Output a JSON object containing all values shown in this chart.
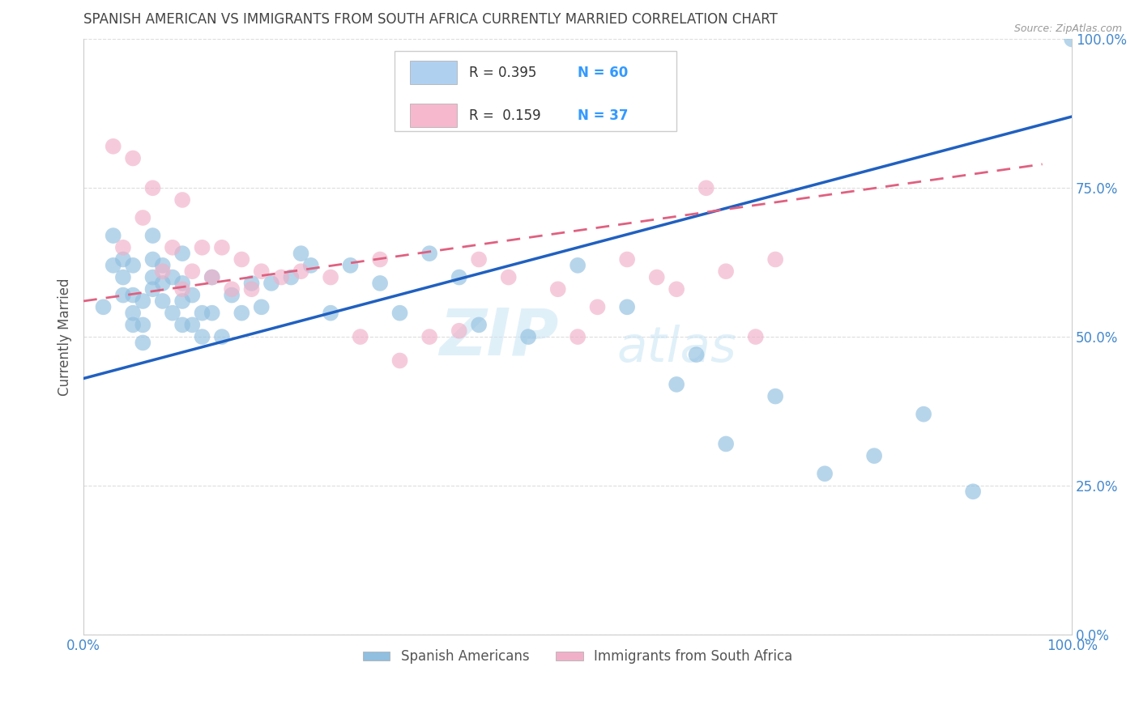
{
  "title": "SPANISH AMERICAN VS IMMIGRANTS FROM SOUTH AFRICA CURRENTLY MARRIED CORRELATION CHART",
  "source": "Source: ZipAtlas.com",
  "ylabel": "Currently Married",
  "xlim": [
    0,
    1
  ],
  "ylim": [
    0,
    1
  ],
  "xtick_positions": [
    0.0,
    1.0
  ],
  "xtick_labels": [
    "0.0%",
    "100.0%"
  ],
  "ytick_positions": [
    0.0,
    0.25,
    0.5,
    0.75,
    1.0
  ],
  "ytick_labels": [
    "0.0%",
    "25.0%",
    "50.0%",
    "75.0%",
    "100.0%"
  ],
  "watermark_text": "ZIPatlas",
  "blue_color": "#90bfe0",
  "pink_color": "#f0b0c8",
  "blue_line_color": "#2060c0",
  "pink_line_color": "#e06080",
  "title_color": "#444444",
  "axis_tick_color": "#4488cc",
  "ylabel_color": "#555555",
  "r_color": "#333333",
  "n_color": "#3399ff",
  "legend_r1": "R = 0.395",
  "legend_n1": "N = 60",
  "legend_r2": "R =  0.159",
  "legend_n2": "N = 37",
  "legend_color1": "#b0d0f0",
  "legend_color2": "#f5b8cc",
  "blue_scatter_x": [
    0.02,
    0.03,
    0.03,
    0.04,
    0.04,
    0.04,
    0.05,
    0.05,
    0.05,
    0.05,
    0.06,
    0.06,
    0.06,
    0.07,
    0.07,
    0.07,
    0.07,
    0.08,
    0.08,
    0.08,
    0.09,
    0.09,
    0.1,
    0.1,
    0.1,
    0.1,
    0.11,
    0.11,
    0.12,
    0.12,
    0.13,
    0.13,
    0.14,
    0.15,
    0.16,
    0.17,
    0.18,
    0.19,
    0.21,
    0.22,
    0.23,
    0.25,
    0.27,
    0.3,
    0.32,
    0.35,
    0.38,
    0.4,
    0.45,
    0.5,
    0.55,
    0.6,
    0.62,
    0.65,
    0.7,
    0.75,
    0.8,
    0.85,
    0.9,
    1.0
  ],
  "blue_scatter_y": [
    0.55,
    0.62,
    0.67,
    0.57,
    0.6,
    0.63,
    0.52,
    0.54,
    0.57,
    0.62,
    0.49,
    0.52,
    0.56,
    0.58,
    0.6,
    0.63,
    0.67,
    0.56,
    0.59,
    0.62,
    0.54,
    0.6,
    0.52,
    0.56,
    0.59,
    0.64,
    0.52,
    0.57,
    0.5,
    0.54,
    0.54,
    0.6,
    0.5,
    0.57,
    0.54,
    0.59,
    0.55,
    0.59,
    0.6,
    0.64,
    0.62,
    0.54,
    0.62,
    0.59,
    0.54,
    0.64,
    0.6,
    0.52,
    0.5,
    0.62,
    0.55,
    0.42,
    0.47,
    0.32,
    0.4,
    0.27,
    0.3,
    0.37,
    0.24,
    1.0
  ],
  "pink_scatter_x": [
    0.03,
    0.04,
    0.05,
    0.06,
    0.07,
    0.08,
    0.09,
    0.1,
    0.1,
    0.11,
    0.12,
    0.13,
    0.14,
    0.15,
    0.16,
    0.17,
    0.18,
    0.2,
    0.22,
    0.25,
    0.28,
    0.3,
    0.32,
    0.35,
    0.38,
    0.4,
    0.43,
    0.48,
    0.52,
    0.55,
    0.58,
    0.6,
    0.63,
    0.65,
    0.68,
    0.7,
    0.5
  ],
  "pink_scatter_y": [
    0.82,
    0.65,
    0.8,
    0.7,
    0.75,
    0.61,
    0.65,
    0.58,
    0.73,
    0.61,
    0.65,
    0.6,
    0.65,
    0.58,
    0.63,
    0.58,
    0.61,
    0.6,
    0.61,
    0.6,
    0.5,
    0.63,
    0.46,
    0.5,
    0.51,
    0.63,
    0.6,
    0.58,
    0.55,
    0.63,
    0.6,
    0.58,
    0.75,
    0.61,
    0.5,
    0.63,
    0.5
  ],
  "blue_line_x0": 0.0,
  "blue_line_x1": 1.0,
  "blue_line_y0": 0.43,
  "blue_line_y1": 0.87,
  "pink_line_x0": 0.0,
  "pink_line_x1": 0.97,
  "pink_line_y0": 0.56,
  "pink_line_y1": 0.79,
  "grid_color": "#dddddd",
  "background_color": "#ffffff"
}
